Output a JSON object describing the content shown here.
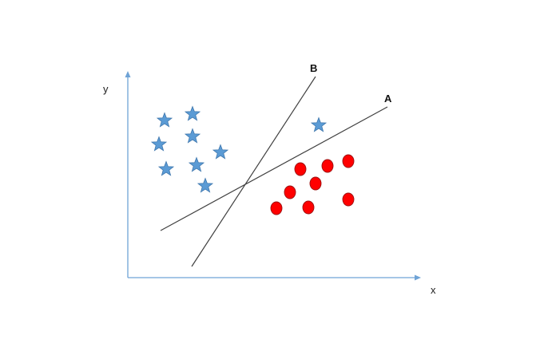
{
  "colors": {
    "axis": "#6fa3d6",
    "star_fill": "#5b9bd5",
    "star_stroke": "#3f77ad",
    "circle_fill": "#ff0000",
    "circle_stroke": "#9a1111",
    "line": "#404040",
    "background": "#ffffff"
  },
  "axes": {
    "x_label": "x",
    "y_label": "y"
  },
  "lines": [
    {
      "id": "A",
      "label": "A"
    },
    {
      "id": "B",
      "label": "B"
    }
  ],
  "classes": [
    {
      "shape": "star-icon",
      "count": 10
    },
    {
      "shape": "circle",
      "count": 8
    }
  ]
}
